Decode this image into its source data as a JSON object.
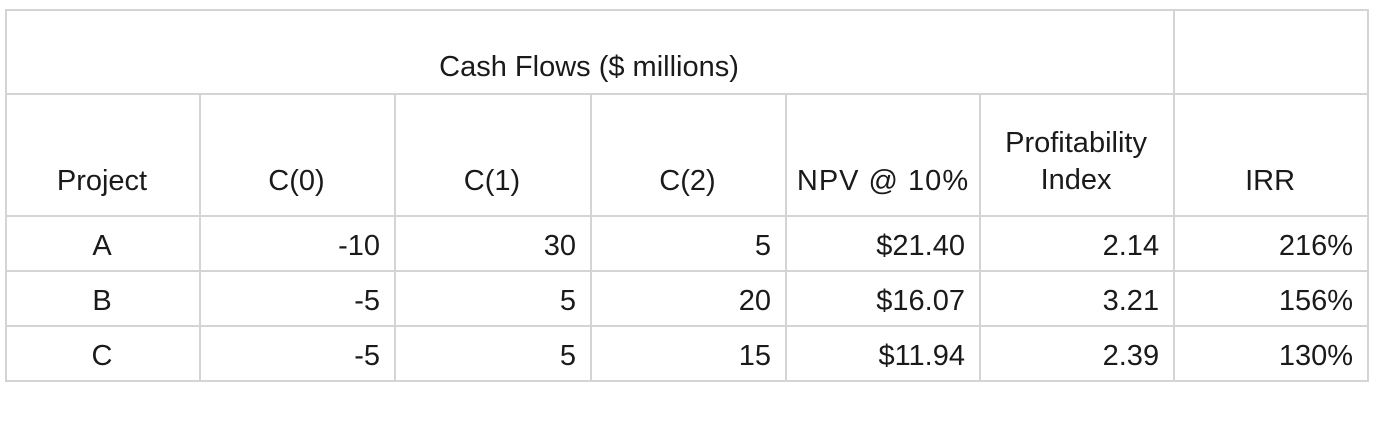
{
  "table": {
    "title": "Cash Flows ($ millions)",
    "headers": [
      "Project",
      "C(0)",
      "C(1)",
      "C(2)",
      "NPV @ 10%",
      "Profitability Index",
      "IRR"
    ],
    "rows": [
      [
        "A",
        "-10",
        "30",
        "5",
        "$21.40",
        "2.14",
        "216%"
      ],
      [
        "B",
        "-5",
        "5",
        "20",
        "$16.07",
        "3.21",
        "156%"
      ],
      [
        "C",
        "-5",
        "5",
        "15",
        "$11.94",
        "2.39",
        "130%"
      ]
    ]
  }
}
